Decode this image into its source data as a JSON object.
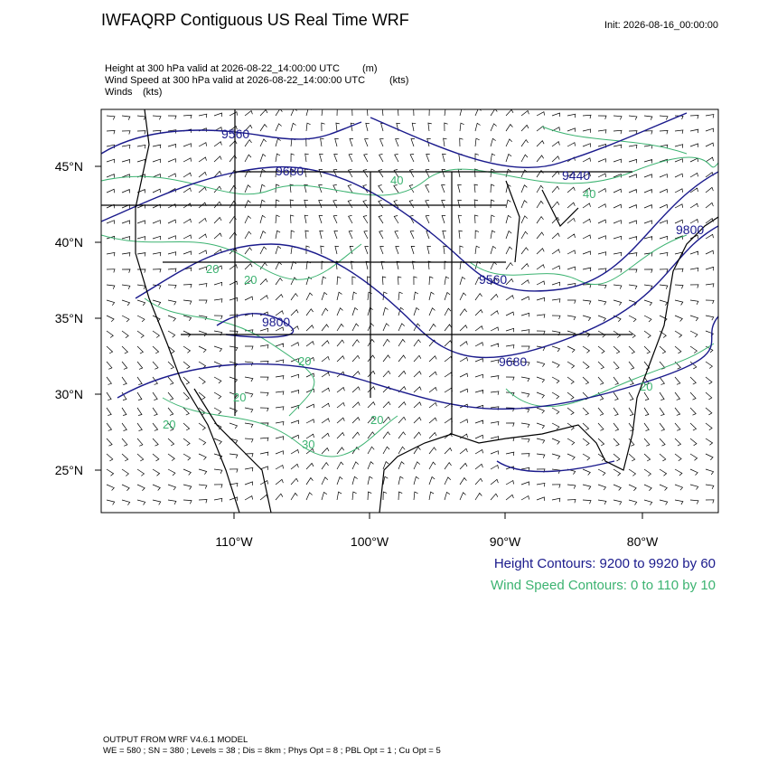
{
  "header": {
    "title": "IWFAQRP Contiguous US Real Time WRF",
    "init": "Init: 2026-08-16_00:00:00"
  },
  "fields": [
    {
      "label": "Height at 300 hPa valid at 2026-08-22_14:00:00 UTC",
      "units": "(m)"
    },
    {
      "label": "Wind Speed at 300 hPa valid at 2026-08-22_14:00:00 UTC",
      "units": "(kts)"
    },
    {
      "label": "Winds",
      "units": "(kts)"
    }
  ],
  "map": {
    "lat_labels": [
      "45°N",
      "40°N",
      "35°N",
      "30°N",
      "25°N"
    ],
    "lon_labels": [
      "110°W",
      "100°W",
      "90°W",
      "80°W"
    ],
    "height_labels": [
      "9560",
      "9680",
      "9440",
      "9560",
      "9800",
      "9680",
      "9800"
    ],
    "wind_labels": [
      "40",
      "40",
      "20",
      "20",
      "20",
      "20",
      "20",
      "20",
      "30",
      "20"
    ]
  },
  "legend": {
    "height": "Height Contours: 9200 to 9920 by 60",
    "wind": "Wind Speed Contours: 0 to 110 by 10"
  },
  "footer": {
    "model": "OUTPUT FROM WRF V4.6.1 MODEL",
    "settings": "WE = 580 ; SN = 380 ; Levels = 38 ; Dis = 8km ; Phys Opt = 8 ; PBL Opt = 1 ; Cu Opt = 5"
  }
}
